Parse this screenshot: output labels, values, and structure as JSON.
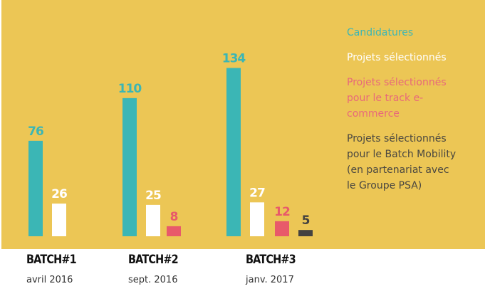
{
  "chart_data": {
    "type": "bar",
    "categories": [
      "BATCH#1",
      "BATCH#2",
      "BATCH#3"
    ],
    "subtitles": [
      "avril 2016",
      "sept. 2016",
      "janv. 2017"
    ],
    "series": [
      {
        "name": "Candidatures",
        "color": "#3bb6b5",
        "values": [
          76,
          110,
          134
        ]
      },
      {
        "name": "Projets sélectionnés",
        "color": "#ffffff",
        "values": [
          26,
          25,
          27
        ]
      },
      {
        "name": "Projets sélectionnés pour le track e-commerce",
        "color": "#e85a6a",
        "values": [
          null,
          8,
          12
        ]
      },
      {
        "name": "Projets sélectionnés pour le Batch Mobility (en partenariat avec le Groupe PSA)",
        "color": "#444240",
        "values": [
          null,
          null,
          5
        ]
      }
    ],
    "ylim": [
      0,
      140
    ],
    "grid": false,
    "legend_position": "right",
    "background": "#ecc655"
  }
}
